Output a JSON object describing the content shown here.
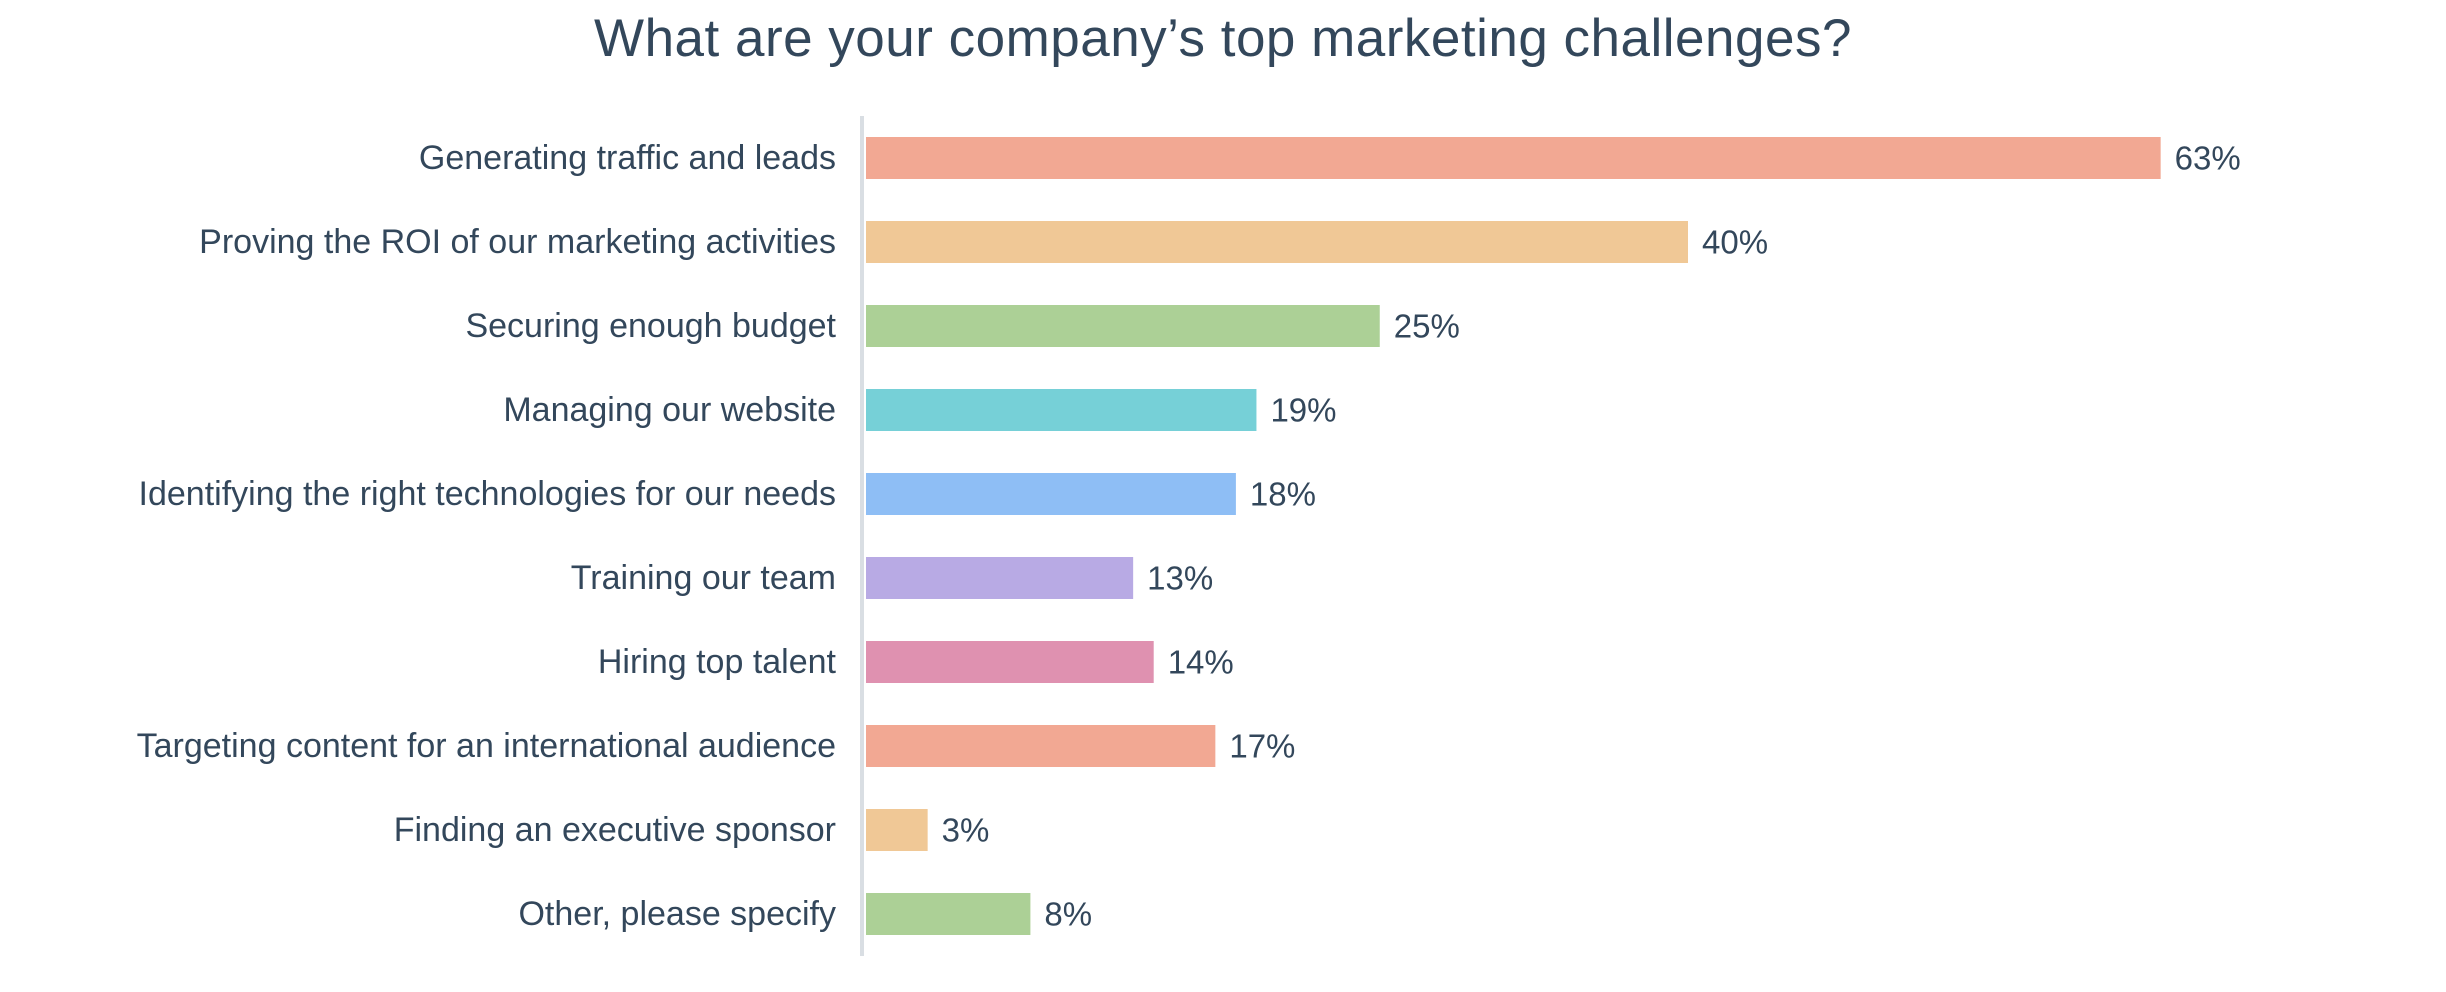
{
  "chart_data": {
    "type": "bar",
    "orientation": "horizontal",
    "title": "What are your company’s top marketing challenges?",
    "xlabel": "",
    "ylabel": "",
    "xlim": [
      0,
      63
    ],
    "grid": false,
    "legend": "none",
    "categories": [
      "Generating traffic and leads",
      "Proving the ROI of our marketing activities",
      "Securing enough budget",
      "Managing our website",
      "Identifying the right technologies for our needs",
      "Training our team",
      "Hiring top talent",
      "Targeting content for an international audience",
      "Finding an executive sponsor",
      "Other, please specify"
    ],
    "values": [
      63,
      40,
      25,
      19,
      18,
      13,
      14,
      17,
      3,
      8
    ],
    "value_labels": [
      "63%",
      "40%",
      "25%",
      "19%",
      "18%",
      "13%",
      "14%",
      "17%",
      "3%",
      "8%"
    ],
    "colors": [
      "#f2a893",
      "#f0c896",
      "#acd096",
      "#76d0d7",
      "#8ebef5",
      "#b8aae4",
      "#df91b0",
      "#f2a893",
      "#f0c896",
      "#acd096"
    ],
    "axis_color": "#d9dee3"
  }
}
